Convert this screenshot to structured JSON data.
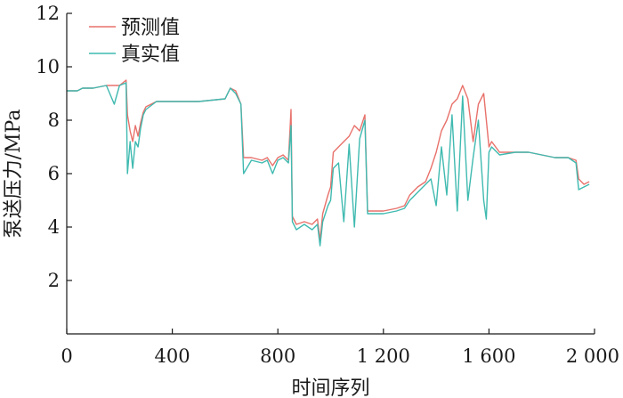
{
  "chart_data": {
    "type": "line",
    "xlabel": "时间序列",
    "ylabel": "泵送压力/MPa",
    "xlim": [
      0,
      2000
    ],
    "ylim": [
      0,
      12
    ],
    "x_ticks": [
      0,
      400,
      800,
      1200,
      1600,
      2000
    ],
    "x_tick_labels": [
      "0",
      "400",
      "800",
      "1 200",
      "1 600",
      "2 000"
    ],
    "y_ticks": [
      2,
      4,
      6,
      8,
      10,
      12
    ],
    "y_tick_labels": [
      "2",
      "4",
      "6",
      "8",
      "10",
      "12"
    ],
    "legend_position": "top-left",
    "grid": false,
    "series": [
      {
        "name": "预测值",
        "color": "#e8716b",
        "points": [
          [
            0,
            9.1
          ],
          [
            40,
            9.1
          ],
          [
            60,
            9.2
          ],
          [
            100,
            9.2
          ],
          [
            150,
            9.3
          ],
          [
            200,
            9.3
          ],
          [
            225,
            9.5
          ],
          [
            230,
            8.2
          ],
          [
            240,
            7.6
          ],
          [
            250,
            7.2
          ],
          [
            260,
            7.8
          ],
          [
            270,
            7.4
          ],
          [
            280,
            7.9
          ],
          [
            290,
            8.3
          ],
          [
            300,
            8.5
          ],
          [
            340,
            8.7
          ],
          [
            400,
            8.7
          ],
          [
            500,
            8.7
          ],
          [
            600,
            8.8
          ],
          [
            620,
            9.2
          ],
          [
            640,
            9.1
          ],
          [
            660,
            8.6
          ],
          [
            670,
            6.6
          ],
          [
            700,
            6.6
          ],
          [
            740,
            6.5
          ],
          [
            760,
            6.6
          ],
          [
            780,
            6.3
          ],
          [
            800,
            6.6
          ],
          [
            820,
            6.7
          ],
          [
            840,
            6.5
          ],
          [
            850,
            8.4
          ],
          [
            855,
            4.4
          ],
          [
            870,
            4.1
          ],
          [
            900,
            4.2
          ],
          [
            930,
            4.1
          ],
          [
            950,
            4.3
          ],
          [
            960,
            3.5
          ],
          [
            970,
            4.5
          ],
          [
            990,
            5.2
          ],
          [
            1000,
            5.5
          ],
          [
            1010,
            6.8
          ],
          [
            1030,
            7.0
          ],
          [
            1050,
            7.2
          ],
          [
            1070,
            7.4
          ],
          [
            1090,
            7.8
          ],
          [
            1110,
            7.6
          ],
          [
            1130,
            8.2
          ],
          [
            1140,
            4.6
          ],
          [
            1160,
            4.6
          ],
          [
            1200,
            4.6
          ],
          [
            1250,
            4.7
          ],
          [
            1280,
            4.8
          ],
          [
            1300,
            5.2
          ],
          [
            1330,
            5.5
          ],
          [
            1360,
            5.7
          ],
          [
            1380,
            6.2
          ],
          [
            1400,
            6.8
          ],
          [
            1420,
            7.6
          ],
          [
            1440,
            8.0
          ],
          [
            1460,
            8.6
          ],
          [
            1480,
            8.8
          ],
          [
            1500,
            9.3
          ],
          [
            1520,
            8.8
          ],
          [
            1540,
            7.2
          ],
          [
            1560,
            8.6
          ],
          [
            1580,
            9.0
          ],
          [
            1600,
            7.0
          ],
          [
            1610,
            7.2
          ],
          [
            1640,
            6.8
          ],
          [
            1700,
            6.8
          ],
          [
            1750,
            6.8
          ],
          [
            1800,
            6.7
          ],
          [
            1850,
            6.6
          ],
          [
            1900,
            6.6
          ],
          [
            1930,
            6.5
          ],
          [
            1940,
            5.8
          ],
          [
            1960,
            5.6
          ],
          [
            1980,
            5.7
          ]
        ]
      },
      {
        "name": "真实值",
        "color": "#3fbab0",
        "points": [
          [
            0,
            9.1
          ],
          [
            40,
            9.1
          ],
          [
            60,
            9.2
          ],
          [
            100,
            9.2
          ],
          [
            150,
            9.3
          ],
          [
            180,
            8.6
          ],
          [
            200,
            9.3
          ],
          [
            225,
            9.4
          ],
          [
            230,
            6.0
          ],
          [
            240,
            7.2
          ],
          [
            250,
            6.2
          ],
          [
            260,
            7.2
          ],
          [
            270,
            7.0
          ],
          [
            280,
            7.7
          ],
          [
            290,
            8.2
          ],
          [
            300,
            8.4
          ],
          [
            340,
            8.7
          ],
          [
            400,
            8.7
          ],
          [
            500,
            8.7
          ],
          [
            600,
            8.8
          ],
          [
            620,
            9.2
          ],
          [
            640,
            9.0
          ],
          [
            660,
            8.6
          ],
          [
            670,
            6.0
          ],
          [
            700,
            6.5
          ],
          [
            740,
            6.4
          ],
          [
            760,
            6.5
          ],
          [
            780,
            6.0
          ],
          [
            800,
            6.5
          ],
          [
            820,
            6.6
          ],
          [
            840,
            6.4
          ],
          [
            850,
            7.8
          ],
          [
            855,
            4.2
          ],
          [
            870,
            3.9
          ],
          [
            900,
            4.1
          ],
          [
            930,
            3.9
          ],
          [
            950,
            4.1
          ],
          [
            960,
            3.3
          ],
          [
            970,
            4.2
          ],
          [
            990,
            4.8
          ],
          [
            1000,
            5.0
          ],
          [
            1010,
            6.2
          ],
          [
            1030,
            6.4
          ],
          [
            1050,
            4.2
          ],
          [
            1070,
            7.1
          ],
          [
            1090,
            4.0
          ],
          [
            1110,
            7.3
          ],
          [
            1130,
            8.0
          ],
          [
            1140,
            4.5
          ],
          [
            1160,
            4.5
          ],
          [
            1200,
            4.5
          ],
          [
            1250,
            4.6
          ],
          [
            1280,
            4.7
          ],
          [
            1300,
            5.0
          ],
          [
            1330,
            5.3
          ],
          [
            1360,
            5.6
          ],
          [
            1380,
            5.8
          ],
          [
            1400,
            4.8
          ],
          [
            1420,
            7.0
          ],
          [
            1440,
            5.2
          ],
          [
            1460,
            8.2
          ],
          [
            1480,
            4.6
          ],
          [
            1500,
            8.9
          ],
          [
            1520,
            5.0
          ],
          [
            1540,
            6.6
          ],
          [
            1560,
            8.0
          ],
          [
            1580,
            5.0
          ],
          [
            1590,
            4.3
          ],
          [
            1600,
            6.8
          ],
          [
            1610,
            7.0
          ],
          [
            1640,
            6.7
          ],
          [
            1700,
            6.8
          ],
          [
            1750,
            6.8
          ],
          [
            1800,
            6.7
          ],
          [
            1850,
            6.6
          ],
          [
            1900,
            6.6
          ],
          [
            1930,
            6.4
          ],
          [
            1940,
            5.4
          ],
          [
            1960,
            5.5
          ],
          [
            1980,
            5.6
          ]
        ]
      }
    ]
  }
}
